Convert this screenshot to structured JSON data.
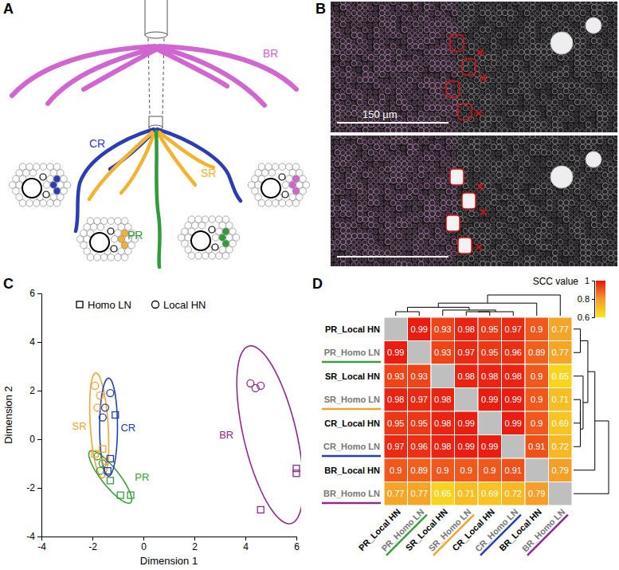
{
  "diagram": {
    "panel_label": "A",
    "roots": [
      {
        "label": "BR",
        "color": "#d066d0"
      },
      {
        "label": "CR",
        "color": "#2b3db3"
      },
      {
        "label": "SR",
        "color": "#f2b233"
      },
      {
        "label": "PR",
        "color": "#2f9b3a"
      }
    ]
  },
  "micrograph": {
    "panel_label": "B",
    "scale_bar": "150 µm"
  },
  "chart_data": [
    {
      "type": "scatter",
      "panel_label": "C",
      "x_label": "Dimension 1",
      "y_label": "Dimension 2",
      "xlim": [
        -4,
        6
      ],
      "ylim": [
        -4,
        6
      ],
      "xticks": [
        -4,
        -2,
        0,
        2,
        4,
        6
      ],
      "yticks": [
        -4,
        -2,
        0,
        2,
        4,
        6
      ],
      "legend_items": [
        {
          "name": "Homo LN",
          "marker": "square"
        },
        {
          "name": "Local HN",
          "marker": "circle"
        }
      ],
      "series": [
        {
          "name": "PR",
          "color": "#3c9e3c",
          "x": [
            -1.8,
            -1.6,
            -1.7,
            -1.3,
            -0.9,
            -0.5
          ],
          "y": [
            -0.7,
            -1.0,
            -1.3,
            -1.7,
            -2.3,
            -2.3
          ],
          "markers": [
            "circle",
            "circle",
            "circle",
            "square",
            "square",
            "square"
          ]
        },
        {
          "name": "SR",
          "color": "#f0a431",
          "x": [
            -1.9,
            -1.7,
            -1.8,
            -1.6,
            -1.5,
            -1.9
          ],
          "y": [
            2.2,
            1.8,
            1.3,
            -0.4,
            -0.9,
            -0.6
          ],
          "markers": [
            "circle",
            "circle",
            "circle",
            "square",
            "square",
            "square"
          ]
        },
        {
          "name": "CR",
          "color": "#2440ad",
          "x": [
            -1.3,
            -1.5,
            -1.6,
            -1.1,
            -1.3,
            -1.4
          ],
          "y": [
            1.9,
            1.3,
            0.9,
            1.0,
            -0.8,
            -1.3
          ],
          "markers": [
            "circle",
            "circle",
            "circle",
            "square",
            "square",
            "square"
          ]
        },
        {
          "name": "BR",
          "color": "#8e2a8e",
          "x": [
            4.2,
            4.4,
            4.6,
            6.0,
            6.0,
            4.6
          ],
          "y": [
            2.3,
            2.1,
            2.2,
            -1.2,
            -1.4,
            -2.9
          ],
          "markers": [
            "circle",
            "circle",
            "circle",
            "square",
            "square",
            "square"
          ]
        }
      ]
    },
    {
      "type": "heatmap",
      "panel_label": "D",
      "row_labels": [
        "PR_Local HN",
        "PR_Homo LN",
        "SR_Local HN",
        "SR_Homo LN",
        "CR_Local HN",
        "CR_Homo LN",
        "BR_Local HN",
        "BR_Homo LN"
      ],
      "col_labels": [
        "PR_Local HN",
        "PR_Homo LN",
        "SR_Local HN",
        "SR_Homo LN",
        "CR_Local HN",
        "CR_Homo LN",
        "BR_Local HN",
        "BR_Homo LN"
      ],
      "cells": [
        [
          null,
          0.99,
          0.93,
          0.98,
          0.95,
          0.97,
          0.9,
          0.77
        ],
        [
          0.99,
          null,
          0.93,
          0.97,
          0.95,
          0.96,
          0.89,
          0.77
        ],
        [
          0.93,
          0.93,
          null,
          0.98,
          0.98,
          0.98,
          0.9,
          0.65
        ],
        [
          0.98,
          0.97,
          0.98,
          null,
          0.99,
          0.99,
          0.9,
          0.71
        ],
        [
          0.95,
          0.95,
          0.98,
          0.99,
          null,
          0.99,
          0.9,
          0.69
        ],
        [
          0.97,
          0.96,
          0.98,
          0.99,
          0.99,
          null,
          0.91,
          0.72
        ],
        [
          0.9,
          0.89,
          0.9,
          0.9,
          0.9,
          0.91,
          null,
          0.79
        ],
        [
          0.77,
          0.77,
          0.65,
          0.71,
          0.69,
          0.72,
          0.79,
          null
        ]
      ],
      "data_labels": true,
      "colorbar": {
        "title": "SCC value",
        "range": [
          0.6,
          1
        ],
        "ticks": [
          0.6,
          0.8,
          1
        ],
        "colors": [
          "#f8e71c",
          "#f59a2b",
          "#e8170f"
        ]
      }
    }
  ]
}
